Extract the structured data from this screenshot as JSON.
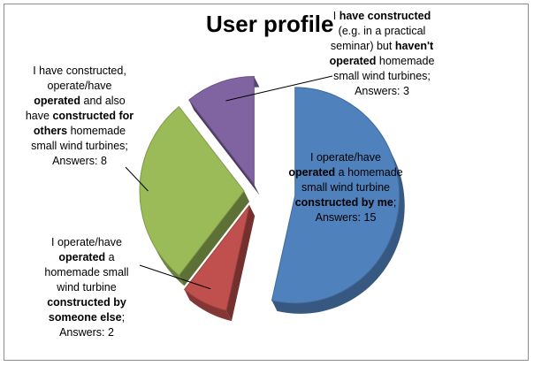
{
  "chart_data": {
    "type": "pie",
    "title": "User profile",
    "slices": [
      {
        "name": "I operate/have operated a homemade small wind turbine constructed by me",
        "value": 15,
        "color": "#4f81bd",
        "label_parts": [
          {
            "text": "I operate/have ",
            "bold": false
          },
          {
            "text": "operated",
            "bold": true
          },
          {
            "text": " a homemade small wind turbine ",
            "bold": false
          },
          {
            "text": "constructed by me",
            "bold": true
          },
          {
            "text": ";",
            "bold": false
          }
        ],
        "answers_text": "Answers: 15"
      },
      {
        "name": "I operate/have operated a homemade small wind turbine constructed by someone else",
        "value": 2,
        "color": "#c0504d",
        "label_parts": [
          {
            "text": "I operate/have ",
            "bold": false
          },
          {
            "text": "operated",
            "bold": true
          },
          {
            "text": " a homemade small wind turbine ",
            "bold": false
          },
          {
            "text": "constructed by someone else",
            "bold": true
          },
          {
            "text": ";",
            "bold": false
          }
        ],
        "answers_text": "Answers: 2"
      },
      {
        "name": "I have constructed, operate/have operated and also have constructed for others homemade small wind turbines",
        "value": 8,
        "color": "#9bbb59",
        "label_parts": [
          {
            "text": "I have constructed, operate/have ",
            "bold": false
          },
          {
            "text": "operated",
            "bold": true
          },
          {
            "text": " and also have ",
            "bold": false
          },
          {
            "text": "constructed for others",
            "bold": true
          },
          {
            "text": " homemade small wind turbines;",
            "bold": false
          }
        ],
        "answers_text": "Answers: 8"
      },
      {
        "name": "I have constructed (e.g. in a practical seminar) but haven't operated homemade small wind turbines",
        "value": 3,
        "color": "#8064a2",
        "label_parts": [
          {
            "text": "I ",
            "bold": false
          },
          {
            "text": "have constructed",
            "bold": true
          },
          {
            "text": " (e.g. in a practical seminar) but ",
            "bold": false
          },
          {
            "text": "haven't operated",
            "bold": true
          },
          {
            "text": " homemade small wind turbines;",
            "bold": false
          }
        ],
        "answers_text": "Answers: 3"
      }
    ]
  }
}
